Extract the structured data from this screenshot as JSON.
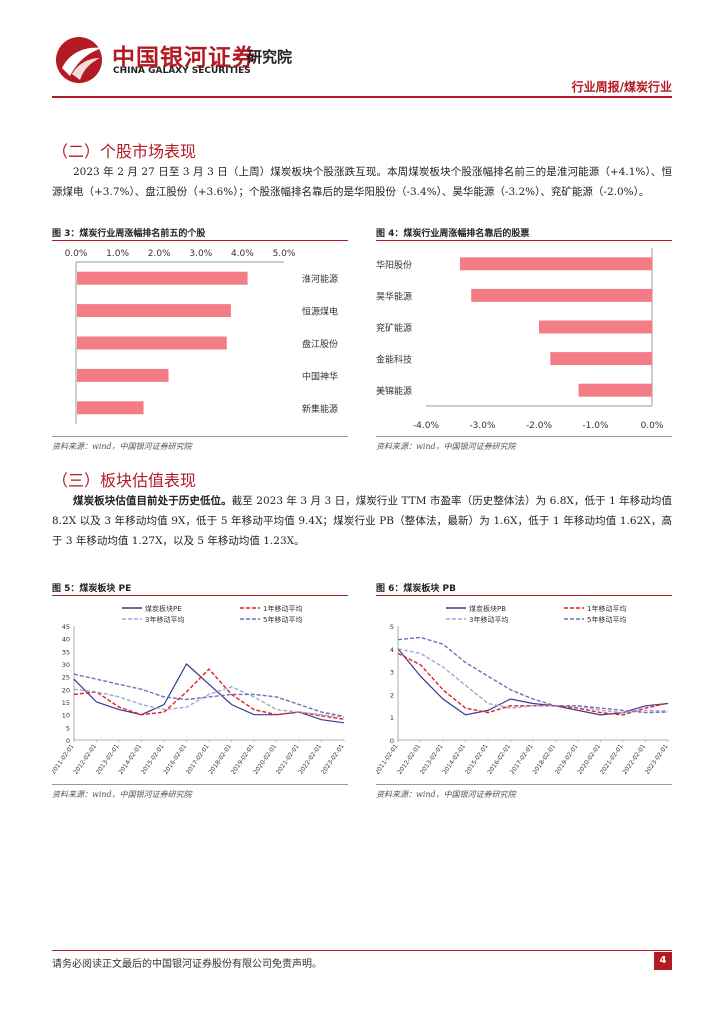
{
  "header": {
    "brand_cn": "中国银河证券",
    "brand_en": "CHINA GALAXY SECURITIES",
    "institute": "研究院",
    "doc_type": "行业周报/煤炭行业"
  },
  "section2": {
    "title": "（二）个股市场表现",
    "paragraph": "2023 年 2 月 27 日至 3 月 3 日（上周）煤炭板块个股涨跌互现。本周煤炭板块个股涨幅排名前三的是淮河能源（+4.1%）、恒源煤电（+3.7%）、盘江股份（+3.6%）；个股涨幅排名靠后的是华阳股份（-3.4%）、昊华能源（-3.2%）、兖矿能源（-2.0%）。"
  },
  "section3": {
    "title": "（三）板块估值表现",
    "lead": "煤炭板块估值目前处于历史低位。",
    "paragraph": "截至 2023 年 3 月 3 日，煤炭行业 TTM 市盈率（历史整体法）为 6.8X，低于 1 年移动均值 8.2X 以及 3 年移动均值 9X，低于 5 年移动平均值 9.4X；煤炭行业 PB（整体法，最新）为 1.6X，低于 1 年移动均值 1.62X，高于 3 年移动均值 1.27X，以及 5 年移动均值 1.23X。"
  },
  "figures": {
    "fig3_title": "图 3：煤炭行业周涨幅排名前五的个股",
    "fig4_title": "图 4：煤炭行业周涨幅排名靠后的股票",
    "fig5_title": "图 5：煤炭板块 PE",
    "fig6_title": "图 6：煤炭板块 PB",
    "source": "资料来源：wind，中国银河证券研究院"
  },
  "footer": {
    "disclaimer": "请务必阅读正文最后的中国银河证券股份有限公司免责声明。",
    "page": "4"
  },
  "chart_data": [
    {
      "type": "bar",
      "orientation": "horizontal",
      "categories": [
        "淮河能源",
        "恒源煤电",
        "盘江股份",
        "中国神华",
        "新集能源"
      ],
      "values": [
        4.1,
        3.7,
        3.6,
        2.2,
        1.6
      ],
      "xlim": [
        0,
        5
      ],
      "xticks": [
        "0.0%",
        "1.0%",
        "2.0%",
        "3.0%",
        "4.0%",
        "5.0%"
      ],
      "axis_position": "top",
      "color": "#f47c86"
    },
    {
      "type": "bar",
      "orientation": "horizontal",
      "categories": [
        "华阳股份",
        "昊华能源",
        "兖矿能源",
        "金能科技",
        "美锦能源"
      ],
      "values": [
        -3.4,
        -3.2,
        -2.0,
        -1.8,
        -1.3
      ],
      "xlim": [
        -4,
        0
      ],
      "xticks": [
        "-4.0%",
        "-3.0%",
        "-2.0%",
        "-1.0%",
        "0.0%"
      ],
      "axis_position": "bottom",
      "color": "#f47c86"
    },
    {
      "type": "line",
      "x": [
        "2011-02-01",
        "2012-02-01",
        "2013-02-01",
        "2014-02-01",
        "2015-02-01",
        "2016-02-01",
        "2017-02-01",
        "2018-02-01",
        "2019-02-01",
        "2020-02-01",
        "2021-02-01",
        "2022-02-01",
        "2023-02-01"
      ],
      "ylim": [
        0,
        45
      ],
      "yticks": [
        "0",
        "5",
        "10",
        "15",
        "20",
        "25",
        "30",
        "35",
        "40",
        "45"
      ],
      "legend_position": "top",
      "series": [
        {
          "name": "煤炭板块PE",
          "color": "#3a3a8c",
          "dash": "solid",
          "values": [
            24,
            15,
            12,
            10,
            14,
            30,
            22,
            14,
            10,
            10,
            11,
            8,
            6.8
          ]
        },
        {
          "name": "1年移动平均",
          "color": "#e02020",
          "dash": "dash",
          "values": [
            18,
            19,
            13,
            10,
            11,
            19,
            28,
            18,
            12,
            10,
            11,
            9.5,
            8.2
          ]
        },
        {
          "name": "3年移动平均",
          "color": "#a0a8d8",
          "dash": "dash",
          "values": [
            20,
            19,
            17,
            14,
            12,
            13,
            18,
            21,
            17,
            12,
            11,
            10,
            9
          ]
        },
        {
          "name": "5年移动平均",
          "color": "#7070b8",
          "dash": "dash",
          "values": [
            26,
            24,
            22,
            20,
            17,
            16,
            17,
            18,
            18,
            17,
            14,
            11,
            9.4
          ]
        }
      ]
    },
    {
      "type": "line",
      "x": [
        "2011-02-01",
        "2012-02-01",
        "2013-02-01",
        "2014-02-01",
        "2015-02-01",
        "2016-02-01",
        "2017-02-01",
        "2018-02-01",
        "2019-02-01",
        "2020-02-01",
        "2021-02-01",
        "2022-02-01",
        "2023-02-01"
      ],
      "ylim": [
        0,
        5
      ],
      "yticks": [
        "0",
        "1",
        "2",
        "3",
        "4",
        "5"
      ],
      "legend_position": "top",
      "series": [
        {
          "name": "煤炭板块PB",
          "color": "#3a3a8c",
          "dash": "solid",
          "values": [
            4.0,
            2.8,
            1.8,
            1.1,
            1.3,
            1.8,
            1.6,
            1.5,
            1.3,
            1.1,
            1.2,
            1.5,
            1.6
          ]
        },
        {
          "name": "1年移动平均",
          "color": "#e02020",
          "dash": "dash",
          "values": [
            3.8,
            3.3,
            2.2,
            1.4,
            1.2,
            1.5,
            1.5,
            1.5,
            1.4,
            1.2,
            1.1,
            1.4,
            1.62
          ]
        },
        {
          "name": "3年移动平均",
          "color": "#a0a8d8",
          "dash": "dash",
          "values": [
            4.0,
            3.8,
            3.2,
            2.4,
            1.6,
            1.4,
            1.5,
            1.5,
            1.5,
            1.3,
            1.2,
            1.3,
            1.27
          ]
        },
        {
          "name": "5年移动平均",
          "color": "#7070b8",
          "dash": "dash",
          "values": [
            4.4,
            4.5,
            4.2,
            3.4,
            2.8,
            2.2,
            1.8,
            1.5,
            1.5,
            1.4,
            1.3,
            1.2,
            1.23
          ]
        }
      ]
    }
  ]
}
